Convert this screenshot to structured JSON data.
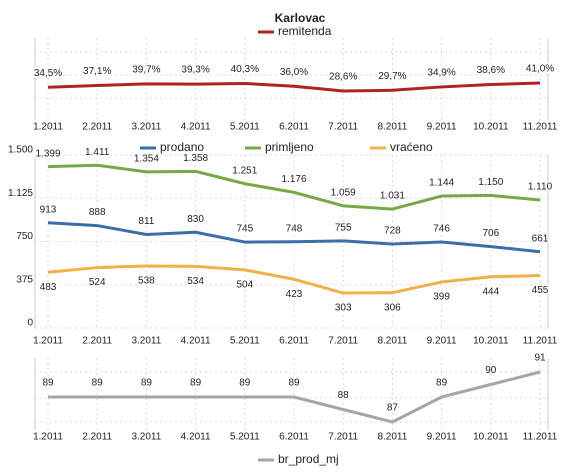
{
  "chart_data": [
    {
      "type": "line",
      "title": "Karlovac",
      "categories": [
        "1.2011",
        "2.2011",
        "3.2011",
        "4.2011",
        "5.2011",
        "6.2011",
        "7.2011",
        "8.2011",
        "9.2011",
        "10.2011",
        "11.2011"
      ],
      "series": [
        {
          "name": "remitenda",
          "color": "#b22222",
          "values": [
            34.5,
            37.1,
            39.7,
            39.3,
            40.3,
            36.0,
            28.6,
            29.7,
            34.9,
            38.6,
            41.0
          ],
          "value_labels": [
            "34,5%",
            "37,1%",
            "39,7%",
            "39,3%",
            "40,3%",
            "36,0%",
            "28,6%",
            "29,7%",
            "34,9%",
            "38,6%",
            "41,0%"
          ]
        }
      ]
    },
    {
      "type": "line",
      "categories": [
        "1.2011",
        "2.2011",
        "3.2011",
        "4.2011",
        "5.2011",
        "6.2011",
        "7.2011",
        "8.2011",
        "9.2011",
        "10.2011",
        "11.2011"
      ],
      "ylim": [
        0,
        1500
      ],
      "yticks": [
        0,
        375,
        750,
        {
          "value": 1125,
          "label": "1.125"
        },
        {
          "value": 1500,
          "label": "1.500"
        }
      ],
      "grid": true,
      "series": [
        {
          "name": "prodano",
          "color": "#3b6ea8",
          "values": [
            913,
            888,
            811,
            830,
            745,
            748,
            755,
            728,
            746,
            706,
            661
          ]
        },
        {
          "name": "primljeno",
          "color": "#77a846",
          "values": [
            1399,
            1411,
            1354,
            1358,
            1251,
            1176,
            1059,
            1031,
            1144,
            1150,
            1110
          ],
          "value_labels": [
            "1.399",
            "1.411",
            "1.354",
            "1.358",
            "1.251",
            "1.176",
            "1.059",
            "1.031",
            "1.144",
            "1.150",
            "1.110"
          ]
        },
        {
          "name": "vraćeno",
          "color": "#f0b14a",
          "values": [
            483,
            524,
            538,
            534,
            504,
            423,
            303,
            306,
            399,
            444,
            455
          ]
        }
      ]
    },
    {
      "type": "line",
      "categories": [
        "1.2011",
        "2.2011",
        "3.2011",
        "4.2011",
        "5.2011",
        "6.2011",
        "7.2011",
        "8.2011",
        "9.2011",
        "10.2011",
        "11.2011"
      ],
      "series": [
        {
          "name": "br_prod_mj",
          "color": "#aaa69f",
          "values": [
            89,
            89,
            89,
            89,
            89,
            89,
            88,
            87,
            89,
            90,
            91
          ]
        }
      ]
    }
  ]
}
